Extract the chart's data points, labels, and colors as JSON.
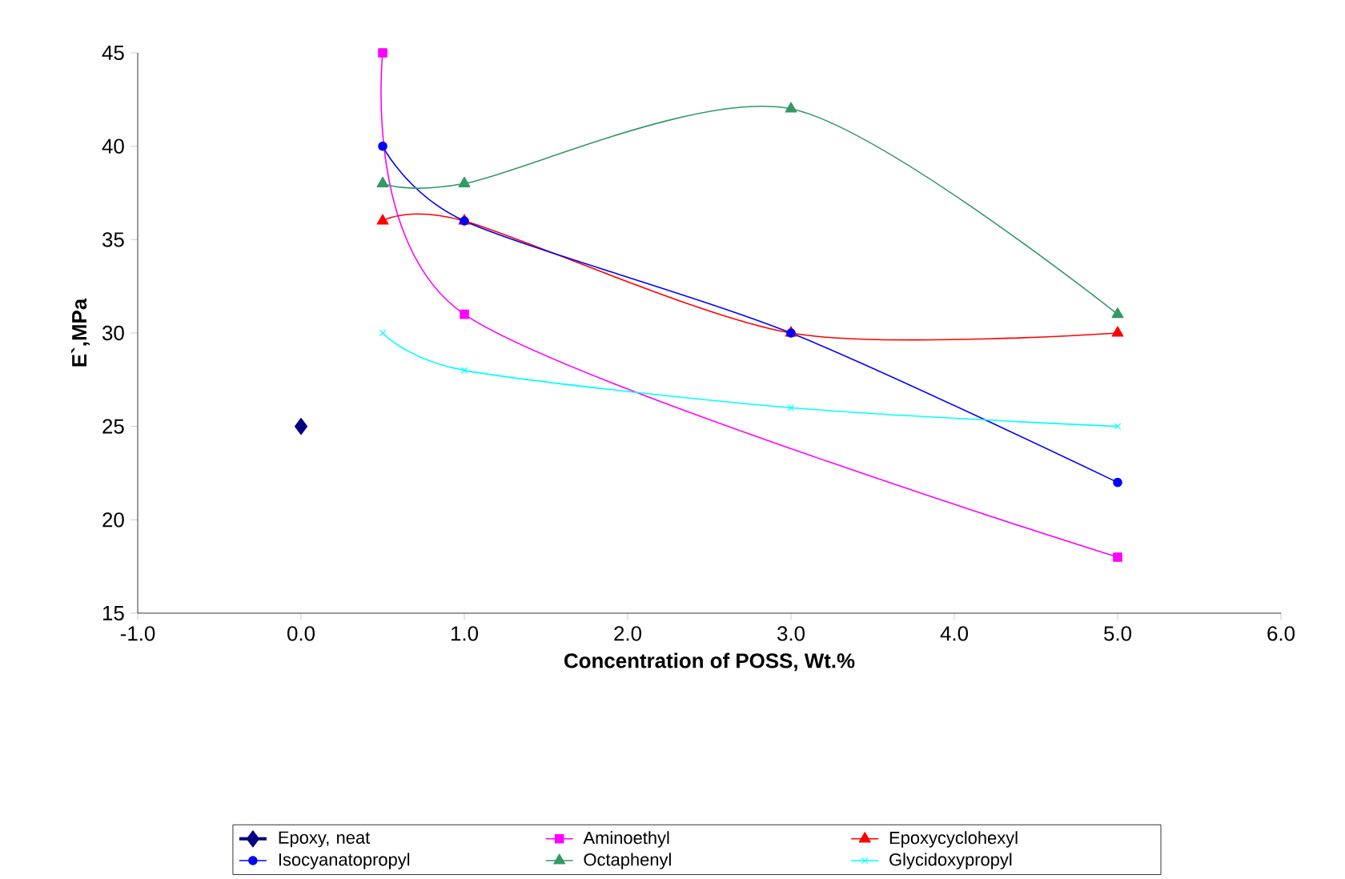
{
  "chart_data": {
    "type": "line",
    "xlabel": "Concentration of POSS,  Wt.%",
    "ylabel": "E`,MPa",
    "xlim": [
      -1,
      6
    ],
    "xticks": [
      {
        "value": -1,
        "label": "-1.0"
      },
      {
        "value": 0,
        "label": "0.0"
      },
      {
        "value": 1,
        "label": "1.0"
      },
      {
        "value": 2,
        "label": "2.0"
      },
      {
        "value": 3,
        "label": "3.0"
      },
      {
        "value": 4,
        "label": "4.0"
      },
      {
        "value": 5,
        "label": "5.0"
      },
      {
        "value": 6,
        "label": "6.0"
      }
    ],
    "ylim": [
      15,
      45
    ],
    "yticks": [
      15,
      20,
      25,
      30,
      35,
      40,
      45
    ],
    "legend": "bottom",
    "series": [
      {
        "name": "Epoxy, neat",
        "color": "#000080",
        "marker": "diamond",
        "x": [
          0
        ],
        "values": [
          25
        ]
      },
      {
        "name": "Aminoethyl",
        "color": "#ff00ff",
        "marker": "square",
        "x": [
          0.5,
          1,
          5
        ],
        "values": [
          45,
          31,
          18
        ]
      },
      {
        "name": "Epoxycyclohexyl",
        "color": "#ff0000",
        "marker": "triangle",
        "x": [
          0.5,
          1,
          3,
          5
        ],
        "values": [
          36,
          36,
          30,
          30
        ]
      },
      {
        "name": "Isocyanatopropyl",
        "color": "#0000ff",
        "marker": "circle",
        "x": [
          0.5,
          1,
          3,
          5
        ],
        "values": [
          40,
          36,
          30,
          22
        ]
      },
      {
        "name": "Octaphenyl",
        "color": "#339966",
        "marker": "triangle",
        "x": [
          0.5,
          1,
          3,
          5
        ],
        "values": [
          38,
          38,
          42,
          31
        ]
      },
      {
        "name": "Glycidoxypropyl",
        "color": "#00ffff",
        "marker": "cross",
        "x": [
          0.5,
          1,
          3,
          5
        ],
        "values": [
          30,
          28,
          26,
          25
        ]
      }
    ]
  }
}
